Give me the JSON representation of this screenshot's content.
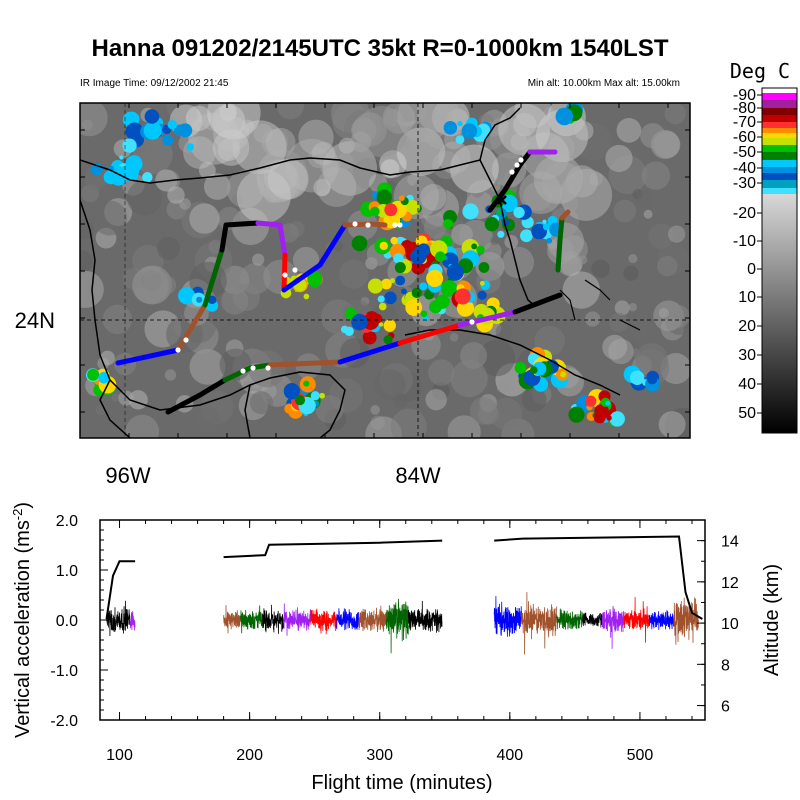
{
  "header": {
    "title": "Hanna 091202/2145UTC 35kt  R=0-1000km 1540LST",
    "ir_time": "IR Image Time: 09/12/2002 21:45",
    "alt_range": "Min alt: 10.00km  Max alt: 15.00km"
  },
  "map": {
    "lon_labels": [
      "96W",
      "84W"
    ],
    "lat_label": "24N",
    "track_colors": [
      "#0000ff",
      "#a0522d",
      "#006400",
      "#000000",
      "#a020f0",
      "#ff0000"
    ]
  },
  "colorbar": {
    "title": "Deg C",
    "labels": [
      "-90",
      "-80",
      "-70",
      "-60",
      "-50",
      "-40",
      "-30",
      "-20",
      "-10",
      "0",
      "10",
      "20",
      "30",
      "40",
      "50"
    ]
  },
  "chart_data": {
    "type": "line",
    "xlabel": "Flight time (minutes)",
    "ylabel_left": "Vertical acceleration (ms-2)",
    "ylabel_right": "Altitude (km)",
    "xlim": [
      85,
      550
    ],
    "ylim_left": [
      -2.0,
      2.0
    ],
    "ylim_right": [
      5.3,
      15
    ],
    "x_ticks": [
      "100",
      "200",
      "300",
      "400",
      "500"
    ],
    "y_ticks_left": [
      "2.0",
      "1.0",
      "0.0",
      "-1.0",
      "-2.0"
    ],
    "y_ticks_right": [
      "14",
      "12",
      "10",
      "8",
      "6"
    ],
    "altitude_segments": [
      [
        [
          90,
          10.2
        ],
        [
          95,
          12.3
        ],
        [
          100,
          13.0
        ],
        [
          112,
          13.0
        ]
      ],
      [
        [
          180,
          13.2
        ],
        [
          212,
          13.3
        ],
        [
          215,
          13.8
        ],
        [
          300,
          13.9
        ],
        [
          348,
          14.0
        ]
      ],
      [
        [
          388,
          14.0
        ],
        [
          410,
          14.1
        ],
        [
          530,
          14.2
        ],
        [
          535,
          11.5
        ],
        [
          540,
          10.5
        ],
        [
          548,
          10.2
        ]
      ]
    ],
    "acceleration_segments": [
      {
        "color": "black",
        "x": [
          90,
          108
        ],
        "amp": 0.25
      },
      {
        "color": "purple",
        "x": [
          108,
          112
        ],
        "amp": 0.2
      },
      {
        "color": "brown",
        "x": [
          180,
          193
        ],
        "amp": 0.18
      },
      {
        "color": "green",
        "x": [
          193,
          210
        ],
        "amp": 0.18
      },
      {
        "color": "black",
        "x": [
          210,
          226
        ],
        "amp": 0.22
      },
      {
        "color": "purple",
        "x": [
          226,
          247
        ],
        "amp": 0.2
      },
      {
        "color": "red",
        "x": [
          247,
          267
        ],
        "amp": 0.2
      },
      {
        "color": "blue",
        "x": [
          267,
          284
        ],
        "amp": 0.22
      },
      {
        "color": "brown",
        "x": [
          284,
          305
        ],
        "amp": 0.22
      },
      {
        "color": "green",
        "x": [
          305,
          322
        ],
        "amp": 0.38
      },
      {
        "color": "black",
        "x": [
          322,
          348
        ],
        "amp": 0.22
      },
      {
        "color": "blue",
        "x": [
          388,
          409
        ],
        "amp": 0.28
      },
      {
        "color": "brown",
        "x": [
          409,
          436
        ],
        "amp": 0.3
      },
      {
        "color": "green",
        "x": [
          436,
          456
        ],
        "amp": 0.18
      },
      {
        "color": "black",
        "x": [
          456,
          471
        ],
        "amp": 0.15
      },
      {
        "color": "purple",
        "x": [
          471,
          488
        ],
        "amp": 0.22
      },
      {
        "color": "red",
        "x": [
          488,
          507
        ],
        "amp": 0.2
      },
      {
        "color": "blue",
        "x": [
          507,
          526
        ],
        "amp": 0.2
      },
      {
        "color": "brown",
        "x": [
          526,
          545
        ],
        "amp": 0.45
      }
    ]
  }
}
